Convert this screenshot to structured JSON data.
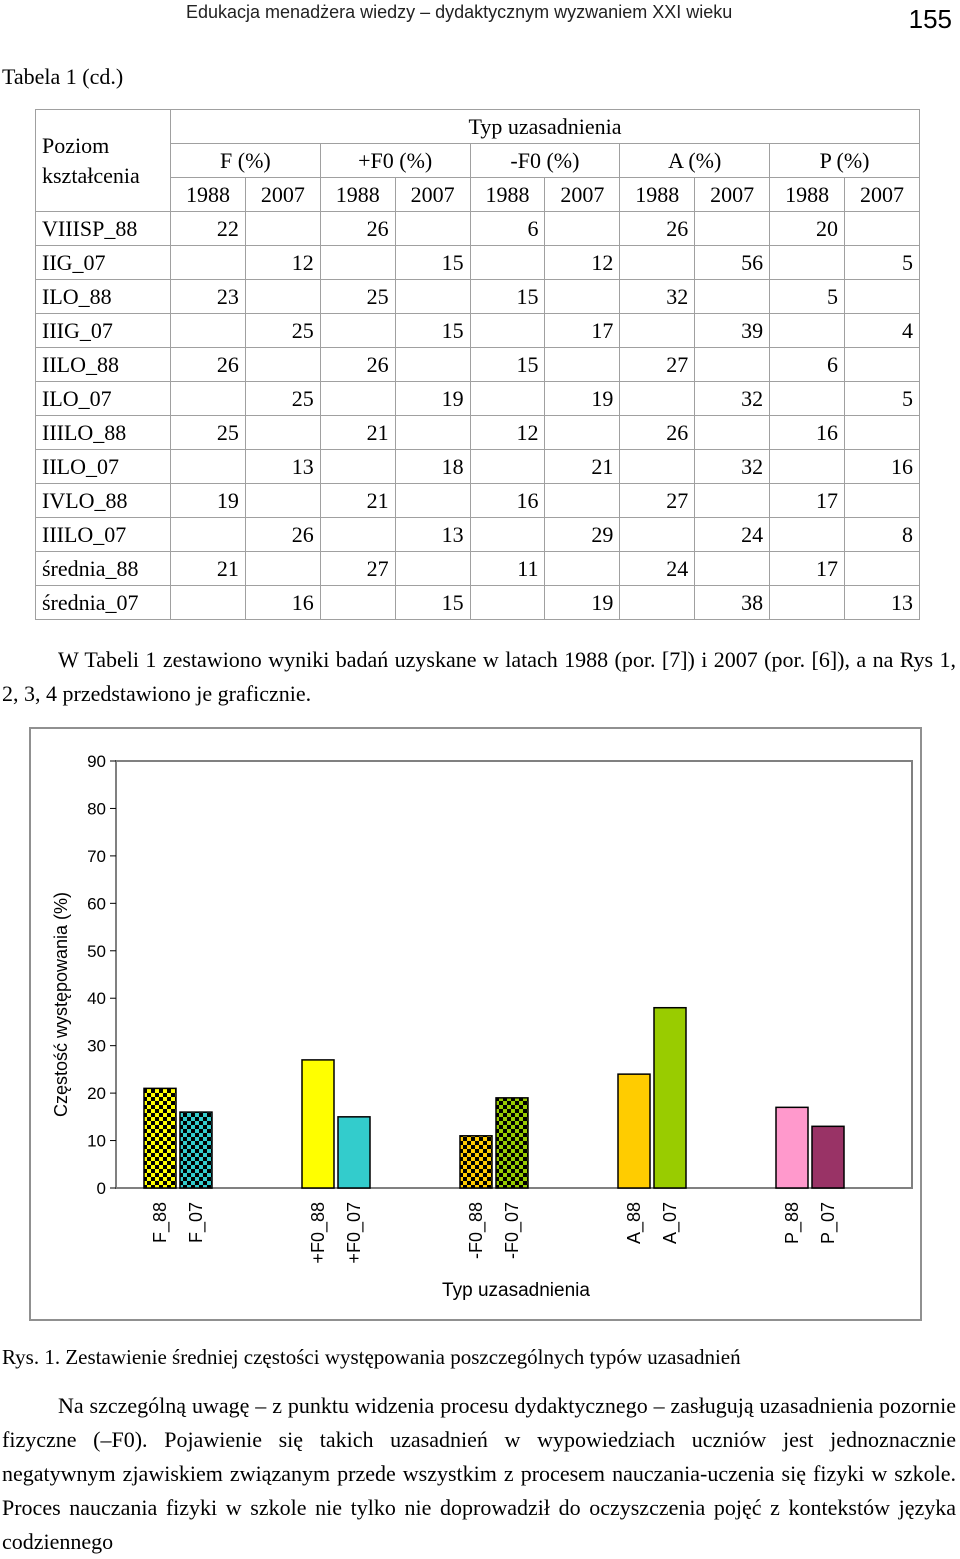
{
  "header": {
    "running_title": "Edukacja menadżera wiedzy – dydaktycznym wyzwaniem XXI wieku",
    "page_number": "155"
  },
  "table": {
    "caption": "Tabela 1 (cd.)",
    "row_header": "Poziom kształcenia",
    "group_header": "Typ uzasadnienia",
    "columns": [
      "F (%)",
      "+F0 (%)",
      "-F0 (%)",
      "A (%)",
      "P (%)"
    ],
    "years": [
      "1988",
      "2007"
    ],
    "rows": [
      {
        "label": "VIIISP_88",
        "year": "1988",
        "values": [
          "22",
          "26",
          "6",
          "26",
          "20"
        ]
      },
      {
        "label": "IIG_07",
        "year": "2007",
        "values": [
          "12",
          "15",
          "12",
          "56",
          "5"
        ]
      },
      {
        "label": "ILO_88",
        "year": "1988",
        "values": [
          "23",
          "25",
          "15",
          "32",
          "5"
        ]
      },
      {
        "label": "IIIG_07",
        "year": "2007",
        "values": [
          "25",
          "15",
          "17",
          "39",
          "4"
        ]
      },
      {
        "label": "IILO_88",
        "year": "1988",
        "values": [
          "26",
          "26",
          "15",
          "27",
          "6"
        ]
      },
      {
        "label": "ILO_07",
        "year": "2007",
        "values": [
          "25",
          "19",
          "19",
          "32",
          "5"
        ]
      },
      {
        "label": "IIILO_88",
        "year": "1988",
        "values": [
          "25",
          "21",
          "12",
          "26",
          "16"
        ]
      },
      {
        "label": "IILO_07",
        "year": "2007",
        "values": [
          "13",
          "18",
          "21",
          "32",
          "16"
        ]
      },
      {
        "label": "IVLO_88",
        "year": "1988",
        "values": [
          "19",
          "21",
          "16",
          "27",
          "17"
        ]
      },
      {
        "label": "IIILO_07",
        "year": "2007",
        "values": [
          "26",
          "13",
          "29",
          "24",
          "8"
        ]
      },
      {
        "label": "średnia_88",
        "year": "1988",
        "values": [
          "21",
          "27",
          "11",
          "24",
          "17"
        ]
      },
      {
        "label": "średnia_07",
        "year": "2007",
        "values": [
          "16",
          "15",
          "19",
          "38",
          "13"
        ]
      }
    ]
  },
  "intro_paragraph": "W Tabeli 1 zestawiono wyniki badań uzyskane w latach 1988 (por. [7]) i 2007 (por. [6]), a na Rys 1, 2, 3, 4 przedstawiono je graficznie.",
  "chart_data": {
    "type": "bar",
    "title": "",
    "xlabel": "Typ uzasadnienia",
    "ylabel": "Częstość występowania (%)",
    "ylim": [
      0,
      90
    ],
    "yticks": [
      0,
      10,
      20,
      30,
      40,
      50,
      60,
      70,
      80,
      90
    ],
    "grid": false,
    "legend": "none",
    "categories": [
      "F_88",
      "F_07",
      "+F0_88",
      "+F0_07",
      "-F0_88",
      "-F0_07",
      "A_88",
      "A_07",
      "P_88",
      "P_07"
    ],
    "values": [
      21,
      16,
      27,
      15,
      11,
      19,
      24,
      38,
      17,
      13
    ],
    "groups": [
      [
        0,
        1
      ],
      [
        2,
        3
      ],
      [
        4,
        5
      ],
      [
        6,
        7
      ],
      [
        8,
        9
      ]
    ],
    "bars": [
      {
        "fill": "#ffff00",
        "pattern": "checker",
        "pattern_color": "#000000"
      },
      {
        "fill": "#33cccc",
        "pattern": "checker",
        "pattern_color": "#000000"
      },
      {
        "fill": "#ffff00",
        "pattern": "none"
      },
      {
        "fill": "#33cccc",
        "pattern": "none"
      },
      {
        "fill": "#ffcc00",
        "pattern": "checker",
        "pattern_color": "#000000"
      },
      {
        "fill": "#99cc00",
        "pattern": "checker",
        "pattern_color": "#000000"
      },
      {
        "fill": "#ffcc00",
        "pattern": "none"
      },
      {
        "fill": "#99cc00",
        "pattern": "none"
      },
      {
        "fill": "#ff99cc",
        "pattern": "none"
      },
      {
        "fill": "#993366",
        "pattern": "none"
      }
    ]
  },
  "figure_caption": "Rys. 1. Zestawienie średniej częstości występowania poszczególnych typów uzasadnień",
  "body_paragraph": "Na szczególną uwagę – z punktu widzenia procesu dydaktycznego – zasługują uzasadnienia pozornie fizyczne (–F0). Pojawienie się takich uzasadnień w wypowiedziach uczniów jest jednoznacznie negatywnym zjawiskiem związanym przede wszystkim z procesem nauczania-uczenia się fizyki w szkole. Proces nauczania fizyki w szkole nie tylko nie doprowadził do oczyszczenia pojęć z kontekstów języka codziennego"
}
